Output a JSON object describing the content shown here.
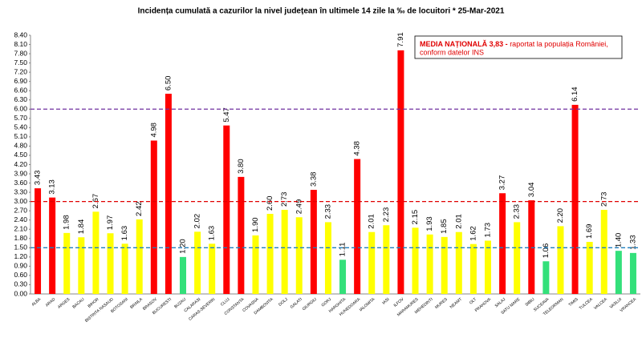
{
  "chart_data": {
    "type": "bar",
    "title": "Incidența cumulată a cazurilor la nivel județean în ultimele 14 zile   la ‰ de locuitori  * 25-Mar-2021",
    "annotation": {
      "emphasis": "MEDIA NAȚIONALĂ 3,83 -",
      "line1": " raportat la populația României,",
      "line2": "conform datelor INS"
    },
    "categories": [
      "ALBA",
      "ARAD",
      "ARGES",
      "BACAU",
      "BIHOR",
      "BISTRITA NASAUD",
      "BOTOSANI",
      "BRAILA",
      "BRASOV",
      "BUCURESTI",
      "BUZAU",
      "CALARASI",
      "CARAS-SEVERIN",
      "CLUJ",
      "CONSTANTA",
      "COVASNA",
      "DAMBOVITA",
      "DOLJ",
      "GALATI",
      "GIURGIU",
      "GORJ",
      "HARGHITA",
      "HUNEDOARA",
      "IALOMITA",
      "IASI",
      "ILFOV",
      "MARAMURES",
      "MEHEDINTI",
      "MURES",
      "NEAMT",
      "OLT",
      "PRAHOVA",
      "SALAJ",
      "SATU MARE",
      "SIBIU",
      "SUCEAVA",
      "TELEORMAN",
      "TIMIS",
      "TULCEA",
      "VALCEA",
      "VASLUI",
      "VRANCEA"
    ],
    "values": [
      3.43,
      3.13,
      1.98,
      1.84,
      2.67,
      1.97,
      1.63,
      2.42,
      4.98,
      6.5,
      1.2,
      2.02,
      1.63,
      5.47,
      3.8,
      1.9,
      2.6,
      2.73,
      2.49,
      3.38,
      2.33,
      1.11,
      4.38,
      2.01,
      2.23,
      7.91,
      2.15,
      1.93,
      1.85,
      2.01,
      1.62,
      1.73,
      3.27,
      2.33,
      3.04,
      1.06,
      2.2,
      6.14,
      1.69,
      2.73,
      1.4,
      1.33
    ],
    "value_labels": [
      "3.43",
      "3.13",
      "1.98",
      "1.84",
      "2.67",
      "1.97",
      "1.63",
      "2.42",
      "4.98",
      "6.50",
      "1.20",
      "2.02",
      "1.63",
      "5.47",
      "3.80",
      "1.90",
      "2.60",
      "2.73",
      "2.49",
      "3.38",
      "2.33",
      "1.11",
      "4.38",
      "2.01",
      "2.23",
      "7.91",
      "2.15",
      "1.93",
      "1.85",
      "2.01",
      "1.62",
      "1.73",
      "3.27",
      "2.33",
      "3.04",
      "1.06",
      "2.20",
      "6.14",
      "1.69",
      "2.73",
      "1.40",
      "1.33"
    ],
    "colors": [
      "#ff0000",
      "#ff0000",
      "#ffff00",
      "#ffff00",
      "#ffff00",
      "#ffff00",
      "#ffff00",
      "#ffff00",
      "#ff0000",
      "#ff0000",
      "#33e07a",
      "#ffff00",
      "#ffff00",
      "#ff0000",
      "#ff0000",
      "#ffff00",
      "#ffff00",
      "#ffff00",
      "#ffff00",
      "#ff0000",
      "#ffff00",
      "#33e07a",
      "#ff0000",
      "#ffff00",
      "#ffff00",
      "#ff0000",
      "#ffff00",
      "#ffff00",
      "#ffff00",
      "#ffff00",
      "#ffff00",
      "#ffff00",
      "#ff0000",
      "#ffff00",
      "#ff0000",
      "#33e07a",
      "#ffff00",
      "#ff0000",
      "#ffff00",
      "#ffff00",
      "#33e07a",
      "#33e07a"
    ],
    "ylim": [
      0,
      8.4
    ],
    "yticks": [
      {
        "value": 0,
        "label": "0.00"
      },
      {
        "value": 0.3,
        "label": "0.30"
      },
      {
        "value": 0.6,
        "label": "0.60"
      },
      {
        "value": 0.9,
        "label": "0.90"
      },
      {
        "value": 1.2,
        "label": "1.20"
      },
      {
        "value": 1.5,
        "label": "1.50"
      },
      {
        "value": 1.8,
        "label": "1.80"
      },
      {
        "value": 2.1,
        "label": "2.10"
      },
      {
        "value": 2.4,
        "label": "2.40"
      },
      {
        "value": 2.7,
        "label": "2.70"
      },
      {
        "value": 3,
        "label": "3.00"
      },
      {
        "value": 3.3,
        "label": "3.30"
      },
      {
        "value": 3.6,
        "label": "3.60"
      },
      {
        "value": 3.9,
        "label": "3.90"
      },
      {
        "value": 4.2,
        "label": "4.20"
      },
      {
        "value": 4.5,
        "label": "4.50"
      },
      {
        "value": 4.8,
        "label": "4.80"
      },
      {
        "value": 5.1,
        "label": "5.10"
      },
      {
        "value": 5.4,
        "label": "5.40"
      },
      {
        "value": 5.7,
        "label": "5.70"
      },
      {
        "value": 6,
        "label": "6.00"
      },
      {
        "value": 6.3,
        "label": "6.30"
      },
      {
        "value": 6.6,
        "label": "6.60"
      },
      {
        "value": 6.9,
        "label": "6.90"
      },
      {
        "value": 7.2,
        "label": "7.20"
      },
      {
        "value": 7.5,
        "label": "7.50"
      },
      {
        "value": 7.8,
        "label": "7.80"
      },
      {
        "value": 8.1,
        "label": "8.10"
      },
      {
        "value": 8.4,
        "label": "8.40"
      }
    ],
    "reference_lines": [
      {
        "value": 6,
        "color": "#7030a0"
      },
      {
        "value": 3,
        "color": "#e00000"
      },
      {
        "value": 1.5,
        "color": "#1f7fbf"
      }
    ]
  }
}
